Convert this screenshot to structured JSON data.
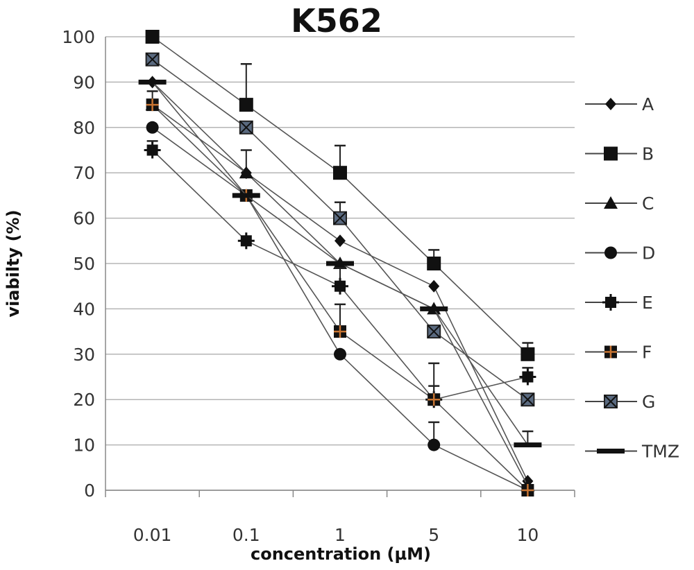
{
  "chart_data": {
    "type": "line",
    "title": "K562",
    "xlabel": "concentration (µM)",
    "ylabel": "viabilty (%)",
    "categories": [
      "0.01",
      "0.1",
      "1",
      "5",
      "10"
    ],
    "y_ticks": [
      "0",
      "10",
      "20",
      "30",
      "40",
      "50",
      "60",
      "70",
      "80",
      "90",
      "100"
    ],
    "ylim": [
      0,
      100
    ],
    "grid": "horizontal",
    "legend_position": "right",
    "series": [
      {
        "name": "A",
        "marker": "diamond",
        "values": [
          90,
          70,
          55,
          45,
          2
        ],
        "errors": [
          0,
          0,
          0,
          0,
          0
        ]
      },
      {
        "name": "B",
        "marker": "square",
        "values": [
          100,
          85,
          70,
          50,
          30
        ],
        "errors": [
          0,
          9,
          6,
          3,
          2.5
        ]
      },
      {
        "name": "C",
        "marker": "triangle",
        "values": [
          85,
          70,
          50,
          40,
          1
        ],
        "errors": [
          0,
          5,
          0,
          0,
          0
        ]
      },
      {
        "name": "D",
        "marker": "circle",
        "values": [
          80,
          65,
          30,
          10,
          0
        ],
        "errors": [
          0,
          0,
          0,
          5,
          0
        ]
      },
      {
        "name": "E",
        "marker": "star",
        "values": [
          75,
          55,
          45,
          20,
          25
        ],
        "errors": [
          2,
          0,
          4,
          8,
          2
        ]
      },
      {
        "name": "F",
        "marker": "plus-square",
        "values": [
          85,
          65,
          35,
          20,
          0
        ],
        "errors": [
          3,
          0,
          6,
          3,
          0
        ]
      },
      {
        "name": "G",
        "marker": "x-square",
        "values": [
          95,
          80,
          60,
          35,
          20
        ],
        "errors": [
          0,
          0,
          3.5,
          0,
          0
        ]
      },
      {
        "name": "TMZ",
        "marker": "dash",
        "values": [
          90,
          65,
          50,
          40,
          10
        ],
        "errors": [
          0,
          0,
          0,
          0,
          3
        ]
      }
    ],
    "colors": {
      "line": "#555555",
      "marker": "#111111",
      "f_marker_cross": "#c87533",
      "g_marker_fill": "#5a6a80",
      "grid": "#b5b5b5"
    }
  }
}
